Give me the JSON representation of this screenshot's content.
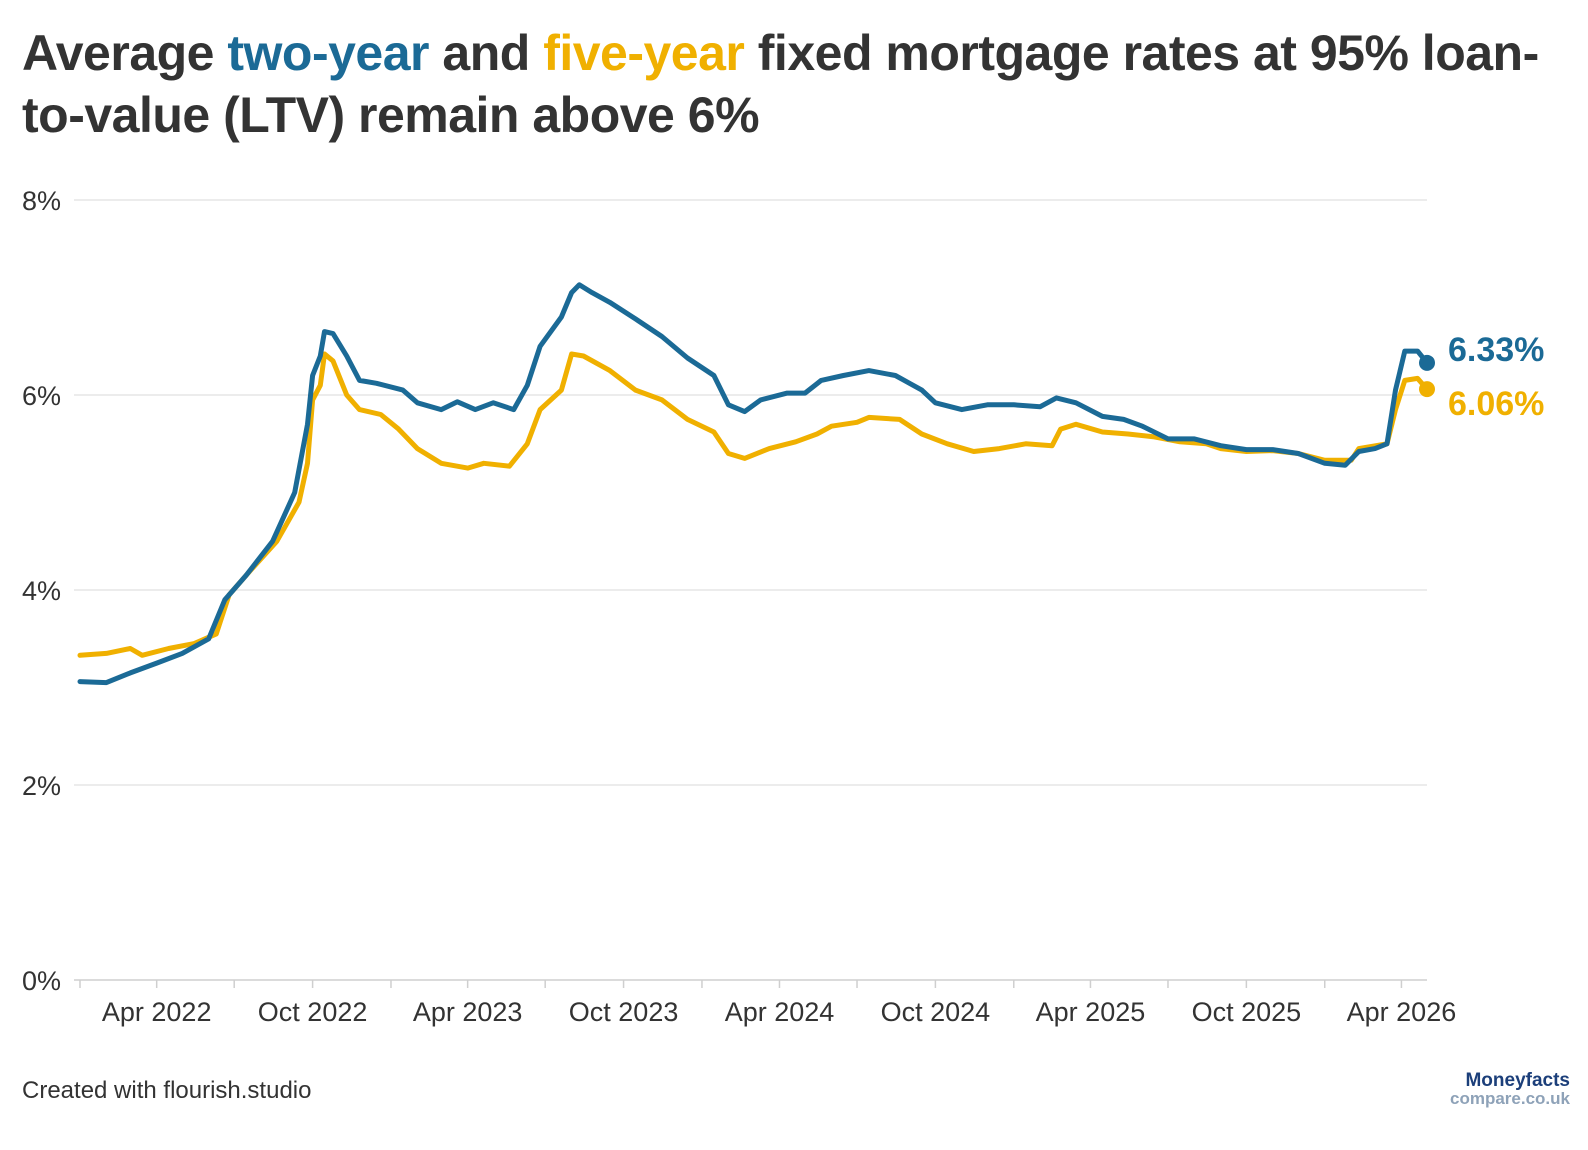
{
  "title": {
    "part1": "Average ",
    "part2": "two-year",
    "part3": " and ",
    "part4": "five-year",
    "part5": " fixed mortgage rates at 95% loan-to-value (LTV) remain above 6%"
  },
  "colors": {
    "two_year": "#1b6a96",
    "five_year": "#f0b000",
    "text": "#333333",
    "grid": "#e6e6e6"
  },
  "footer": "Created with flourish.studio",
  "logo": {
    "main": "Moneyfacts",
    "sub": "compare.co.uk"
  },
  "chart_data": {
    "type": "line",
    "title": "Average two-year and five-year fixed mortgage rates at 95% loan-to-value (LTV) remain above 6%",
    "xlabel": "",
    "ylabel": "",
    "x_range": [
      "2022-01-01",
      "2026-05-01"
    ],
    "ylim": [
      0,
      8
    ],
    "y_ticks": [
      0,
      2,
      4,
      6,
      8
    ],
    "y_tick_labels": [
      "0%",
      "2%",
      "4%",
      "6%",
      "8%"
    ],
    "x_ticks": [
      "2022-04-01",
      "2022-10-01",
      "2023-04-01",
      "2023-10-01",
      "2024-04-01",
      "2024-10-01",
      "2025-04-01",
      "2025-10-01",
      "2026-04-01"
    ],
    "x_tick_labels": [
      "Apr 2022",
      "Oct 2022",
      "Apr 2023",
      "Oct 2023",
      "Apr 2024",
      "Oct 2024",
      "Apr 2025",
      "Oct 2025",
      "Apr 2026"
    ],
    "grid": true,
    "legend": "none",
    "series": [
      {
        "key": "two_year",
        "end_label": "6.33%",
        "points": [
          [
            "2022-01-01",
            3.06
          ],
          [
            "2022-02-01",
            3.05
          ],
          [
            "2022-03-01",
            3.15
          ],
          [
            "2022-04-01",
            3.25
          ],
          [
            "2022-05-01",
            3.35
          ],
          [
            "2022-06-01",
            3.5
          ],
          [
            "2022-06-20",
            3.9
          ],
          [
            "2022-07-15",
            4.15
          ],
          [
            "2022-08-15",
            4.5
          ],
          [
            "2022-09-10",
            5.0
          ],
          [
            "2022-09-25",
            5.7
          ],
          [
            "2022-10-01",
            6.2
          ],
          [
            "2022-10-10",
            6.4
          ],
          [
            "2022-10-15",
            6.65
          ],
          [
            "2022-10-25",
            6.63
          ],
          [
            "2022-11-10",
            6.4
          ],
          [
            "2022-11-25",
            6.15
          ],
          [
            "2022-12-15",
            6.12
          ],
          [
            "2023-01-15",
            6.05
          ],
          [
            "2023-02-01",
            5.92
          ],
          [
            "2023-03-01",
            5.85
          ],
          [
            "2023-03-20",
            5.93
          ],
          [
            "2023-04-10",
            5.85
          ],
          [
            "2023-05-01",
            5.92
          ],
          [
            "2023-05-25",
            5.85
          ],
          [
            "2023-06-10",
            6.1
          ],
          [
            "2023-06-25",
            6.5
          ],
          [
            "2023-07-20",
            6.8
          ],
          [
            "2023-08-01",
            7.05
          ],
          [
            "2023-08-10",
            7.13
          ],
          [
            "2023-08-25",
            7.05
          ],
          [
            "2023-09-15",
            6.95
          ],
          [
            "2023-10-15",
            6.78
          ],
          [
            "2023-11-15",
            6.6
          ],
          [
            "2023-12-15",
            6.38
          ],
          [
            "2024-01-15",
            6.2
          ],
          [
            "2024-02-01",
            5.9
          ],
          [
            "2024-02-20",
            5.83
          ],
          [
            "2024-03-10",
            5.95
          ],
          [
            "2024-04-10",
            6.02
          ],
          [
            "2024-05-01",
            6.02
          ],
          [
            "2024-05-20",
            6.15
          ],
          [
            "2024-06-15",
            6.2
          ],
          [
            "2024-07-15",
            6.25
          ],
          [
            "2024-08-15",
            6.2
          ],
          [
            "2024-09-15",
            6.05
          ],
          [
            "2024-10-01",
            5.92
          ],
          [
            "2024-11-01",
            5.85
          ],
          [
            "2024-12-01",
            5.9
          ],
          [
            "2025-01-01",
            5.9
          ],
          [
            "2025-02-01",
            5.88
          ],
          [
            "2025-02-20",
            5.97
          ],
          [
            "2025-03-15",
            5.92
          ],
          [
            "2025-04-15",
            5.78
          ],
          [
            "2025-05-10",
            5.75
          ],
          [
            "2025-06-01",
            5.68
          ],
          [
            "2025-07-01",
            5.55
          ],
          [
            "2025-08-01",
            5.55
          ],
          [
            "2025-09-01",
            5.48
          ],
          [
            "2025-10-01",
            5.44
          ],
          [
            "2025-11-01",
            5.44
          ],
          [
            "2025-12-01",
            5.4
          ],
          [
            "2026-01-01",
            5.3
          ],
          [
            "2026-01-25",
            5.28
          ],
          [
            "2026-02-10",
            5.42
          ],
          [
            "2026-03-01",
            5.45
          ],
          [
            "2026-03-15",
            5.5
          ],
          [
            "2026-03-25",
            6.05
          ],
          [
            "2026-04-05",
            6.45
          ],
          [
            "2026-04-20",
            6.45
          ],
          [
            "2026-05-01",
            6.33
          ]
        ]
      },
      {
        "key": "five_year",
        "end_label": "6.06%",
        "points": [
          [
            "2022-01-01",
            3.33
          ],
          [
            "2022-02-01",
            3.35
          ],
          [
            "2022-03-01",
            3.4
          ],
          [
            "2022-03-15",
            3.33
          ],
          [
            "2022-04-15",
            3.4
          ],
          [
            "2022-05-15",
            3.45
          ],
          [
            "2022-06-10",
            3.55
          ],
          [
            "2022-06-25",
            3.95
          ],
          [
            "2022-07-20",
            4.2
          ],
          [
            "2022-08-20",
            4.5
          ],
          [
            "2022-09-15",
            4.9
          ],
          [
            "2022-09-25",
            5.3
          ],
          [
            "2022-10-01",
            5.95
          ],
          [
            "2022-10-10",
            6.1
          ],
          [
            "2022-10-15",
            6.42
          ],
          [
            "2022-10-25",
            6.35
          ],
          [
            "2022-11-10",
            6.0
          ],
          [
            "2022-11-25",
            5.85
          ],
          [
            "2022-12-20",
            5.8
          ],
          [
            "2023-01-10",
            5.65
          ],
          [
            "2023-02-01",
            5.45
          ],
          [
            "2023-03-01",
            5.3
          ],
          [
            "2023-04-01",
            5.25
          ],
          [
            "2023-04-20",
            5.3
          ],
          [
            "2023-05-20",
            5.27
          ],
          [
            "2023-06-10",
            5.5
          ],
          [
            "2023-06-25",
            5.85
          ],
          [
            "2023-07-20",
            6.05
          ],
          [
            "2023-08-01",
            6.42
          ],
          [
            "2023-08-15",
            6.4
          ],
          [
            "2023-09-15",
            6.25
          ],
          [
            "2023-10-15",
            6.05
          ],
          [
            "2023-11-15",
            5.95
          ],
          [
            "2023-12-15",
            5.75
          ],
          [
            "2024-01-15",
            5.62
          ],
          [
            "2024-02-01",
            5.4
          ],
          [
            "2024-02-20",
            5.35
          ],
          [
            "2024-03-20",
            5.45
          ],
          [
            "2024-04-20",
            5.52
          ],
          [
            "2024-05-15",
            5.6
          ],
          [
            "2024-06-01",
            5.68
          ],
          [
            "2024-07-01",
            5.72
          ],
          [
            "2024-07-15",
            5.77
          ],
          [
            "2024-08-20",
            5.75
          ],
          [
            "2024-09-15",
            5.6
          ],
          [
            "2024-10-15",
            5.5
          ],
          [
            "2024-11-15",
            5.42
          ],
          [
            "2024-12-15",
            5.45
          ],
          [
            "2025-01-15",
            5.5
          ],
          [
            "2025-02-15",
            5.48
          ],
          [
            "2025-02-25",
            5.65
          ],
          [
            "2025-03-15",
            5.7
          ],
          [
            "2025-04-15",
            5.62
          ],
          [
            "2025-05-15",
            5.6
          ],
          [
            "2025-06-15",
            5.57
          ],
          [
            "2025-07-15",
            5.52
          ],
          [
            "2025-08-15",
            5.5
          ],
          [
            "2025-09-01",
            5.45
          ],
          [
            "2025-10-01",
            5.42
          ],
          [
            "2025-11-01",
            5.43
          ],
          [
            "2025-12-01",
            5.4
          ],
          [
            "2026-01-01",
            5.33
          ],
          [
            "2026-02-01",
            5.33
          ],
          [
            "2026-02-10",
            5.45
          ],
          [
            "2026-03-15",
            5.5
          ],
          [
            "2026-03-25",
            5.85
          ],
          [
            "2026-04-05",
            6.15
          ],
          [
            "2026-04-20",
            6.17
          ],
          [
            "2026-05-01",
            6.06
          ]
        ]
      }
    ]
  }
}
